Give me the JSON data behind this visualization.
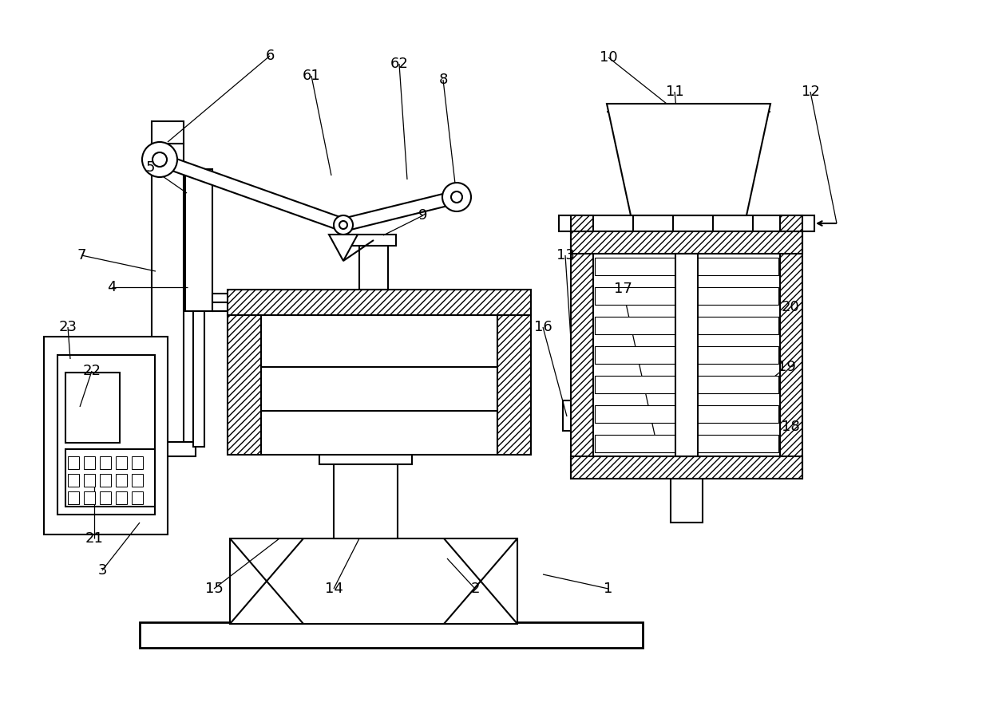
{
  "bg_color": "#ffffff",
  "lw": 1.5,
  "lw_thick": 2.0,
  "fs": 13
}
